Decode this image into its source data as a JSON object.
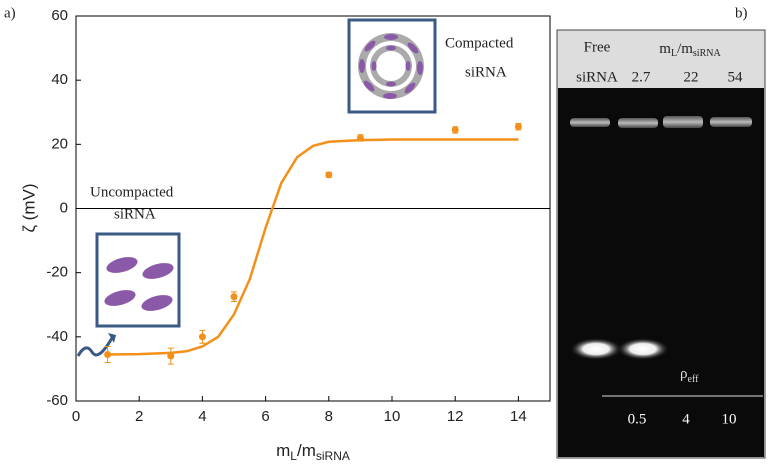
{
  "chart_data": {
    "type": "scatter",
    "panel_label": "a)",
    "xlabel": {
      "main": "m",
      "sub1": "L",
      "mid": "/m",
      "sub2": "siRNA"
    },
    "ylabel": "ζ (mV)",
    "xlim": [
      0,
      15
    ],
    "xticks": [
      0,
      2,
      4,
      6,
      8,
      10,
      12,
      14
    ],
    "ylim": [
      -60,
      60
    ],
    "yticks": [
      -60,
      -40,
      -20,
      0,
      20,
      40,
      60
    ],
    "annotations": {
      "uncompacted": [
        "Uncompacted",
        "siRNA"
      ],
      "compacted": [
        "Compacted",
        "siRNA"
      ]
    },
    "series": [
      {
        "type": "scatter",
        "color": "#f39019",
        "x": [
          1,
          3,
          4,
          5,
          8,
          9,
          12,
          14
        ],
        "values": [
          -45.5,
          -46,
          -40,
          -27.5,
          10.5,
          22,
          24.5,
          25.5
        ],
        "errors": [
          2.5,
          2.5,
          2,
          1.5,
          0.8,
          1,
          1,
          1
        ]
      },
      {
        "type": "line",
        "color": "#f39019",
        "x": [
          1,
          2,
          3,
          3.5,
          4,
          4.5,
          5,
          5.5,
          6,
          6.5,
          7,
          7.5,
          8,
          9,
          10,
          14
        ],
        "values": [
          -45.5,
          -45.4,
          -45,
          -44.5,
          -43,
          -40,
          -33,
          -22,
          -6,
          8,
          16,
          19.5,
          20.8,
          21.3,
          21.5,
          21.5
        ]
      }
    ]
  },
  "gel": {
    "panel_label": "b)",
    "free": [
      "Free",
      "siRNA"
    ],
    "ratio_label": {
      "main": "m",
      "sub1": "L",
      "mid": "/m",
      "sub2": "siRNA"
    },
    "ratios": [
      "2.7",
      "22",
      "54"
    ],
    "rho_label": {
      "main": "ρ",
      "sub": "eff"
    },
    "rho_values": [
      "0.5",
      "4",
      "10"
    ]
  }
}
